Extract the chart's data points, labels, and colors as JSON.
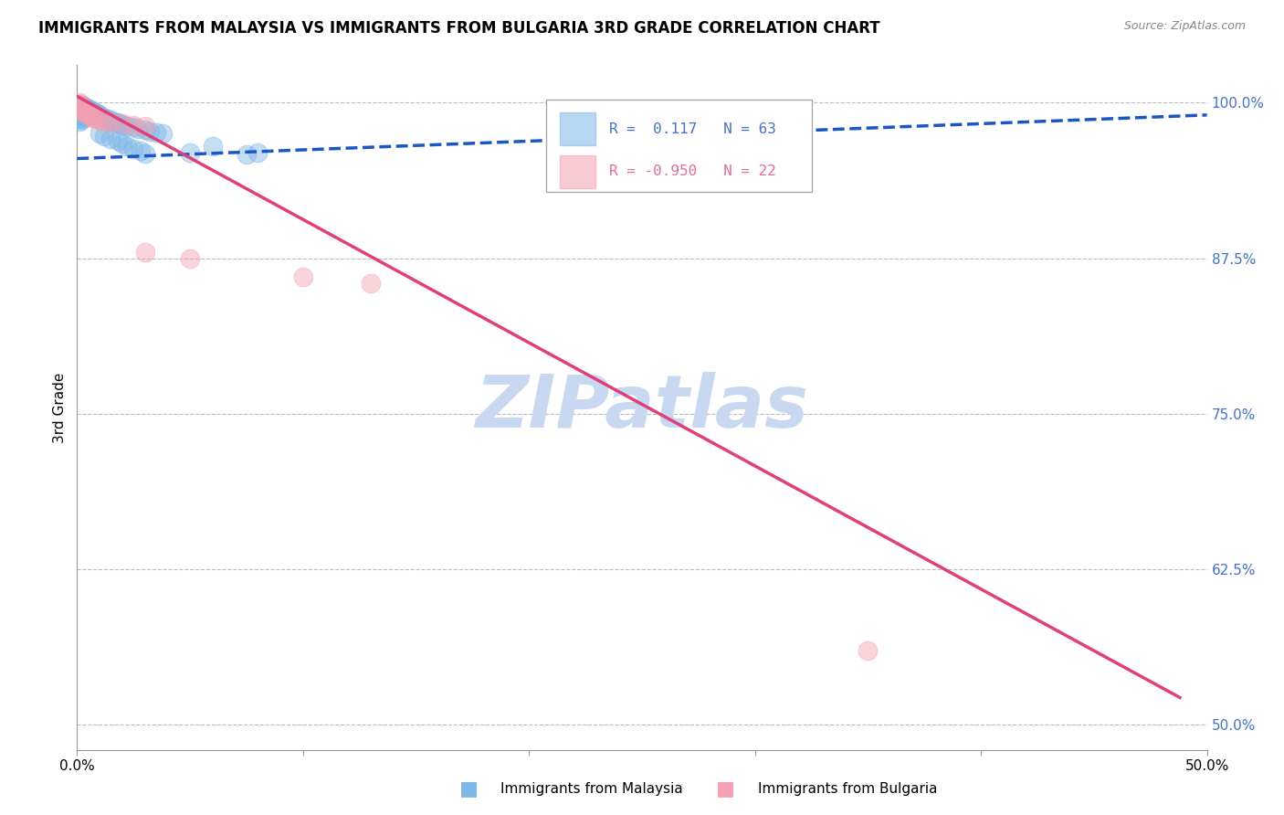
{
  "title": "IMMIGRANTS FROM MALAYSIA VS IMMIGRANTS FROM BULGARIA 3RD GRADE CORRELATION CHART",
  "source": "Source: ZipAtlas.com",
  "ylabel": "3rd Grade",
  "xlim": [
    0.0,
    0.5
  ],
  "ylim": [
    0.48,
    1.03
  ],
  "xticks": [
    0.0,
    0.1,
    0.2,
    0.3,
    0.4,
    0.5
  ],
  "xticklabels": [
    "0.0%",
    "",
    "",
    "",
    "",
    "50.0%"
  ],
  "yticks_right": [
    0.5,
    0.625,
    0.75,
    0.875,
    1.0
  ],
  "yticklabels_right": [
    "50.0%",
    "62.5%",
    "75.0%",
    "87.5%",
    "100.0%"
  ],
  "grid_color": "#bbbbbb",
  "background_color": "#ffffff",
  "malaysia_color": "#7EB6E8",
  "bulgaria_color": "#F4A0B0",
  "malaysia_R": 0.117,
  "malaysia_N": 63,
  "bulgaria_R": -0.95,
  "bulgaria_N": 22,
  "malaysia_line_color": "#1a56c4",
  "bulgaria_line_color": "#E0407A",
  "watermark": "ZIPatlas",
  "watermark_color": "#C8D8F0",
  "title_fontsize": 12,
  "malaysia_line_x0": 0.0,
  "malaysia_line_y0": 0.955,
  "malaysia_line_x1": 0.5,
  "malaysia_line_y1": 0.99,
  "bulgaria_line_x0": 0.0,
  "bulgaria_line_y0": 1.005,
  "bulgaria_line_x1": 0.488,
  "bulgaria_line_y1": 0.522
}
